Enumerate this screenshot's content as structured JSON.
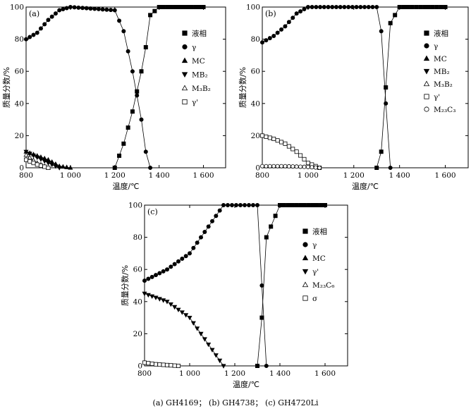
{
  "caption": "(a) GH4169； (b) GH4738； (c) GH4720Li",
  "chart_data": [
    {
      "type": "scatter",
      "panel_label": "(a)",
      "xlabel": "温度/℃",
      "ylabel": "质量分数/%",
      "xlim": [
        800,
        1700
      ],
      "ylim": [
        0,
        100
      ],
      "xticks": [
        800,
        1000,
        1200,
        1400,
        1600
      ],
      "xtick_labels": [
        "800",
        "1 000",
        "1 200",
        "1 400",
        "1 600"
      ],
      "yticks": [
        0,
        20,
        40,
        60,
        80,
        100
      ],
      "ytick_labels": [
        "0",
        "20",
        "40",
        "60",
        "80",
        "100"
      ],
      "legend_position": "right",
      "series": [
        {
          "name": "液相",
          "marker": "square-filled",
          "x": [
            1200,
            1240,
            1280,
            1320,
            1340,
            1360,
            1400,
            1600
          ],
          "y": [
            0,
            15,
            35,
            60,
            75,
            95,
            100,
            100
          ]
        },
        {
          "name": "γ",
          "marker": "circle-filled",
          "x": [
            800,
            850,
            900,
            950,
            1000,
            1200,
            1240,
            1280,
            1320,
            1340,
            1360
          ],
          "y": [
            80,
            84,
            92,
            98,
            100,
            98,
            85,
            60,
            30,
            10,
            0
          ]
        },
        {
          "name": "MC",
          "marker": "triangle-up-filled",
          "x": [
            800,
            900,
            950,
            1000
          ],
          "y": [
            10,
            5,
            1,
            0
          ]
        },
        {
          "name": "MB₂",
          "marker": "triangle-down-filled",
          "x": [
            800,
            900,
            950
          ],
          "y": [
            10,
            3,
            0
          ]
        },
        {
          "name": "M₃B₂",
          "marker": "triangle-up-open",
          "x": [
            800,
            850,
            900
          ],
          "y": [
            8,
            3,
            0
          ]
        },
        {
          "name": "γ'",
          "marker": "square-open",
          "x": [
            800,
            850,
            900
          ],
          "y": [
            5,
            2,
            0
          ]
        }
      ]
    },
    {
      "type": "scatter",
      "panel_label": "(b)",
      "xlabel": "温度/℃",
      "ylabel": "质量分数/%",
      "xlim": [
        800,
        1700
      ],
      "ylim": [
        0,
        100
      ],
      "xticks": [
        800,
        1000,
        1200,
        1400,
        1600
      ],
      "xtick_labels": [
        "800",
        "1 000",
        "1 200",
        "1 400",
        "1 600"
      ],
      "yticks": [
        0,
        20,
        40,
        60,
        80,
        100
      ],
      "ytick_labels": [
        "0",
        "20",
        "40",
        "60",
        "80",
        "100"
      ],
      "legend_position": "right",
      "series": [
        {
          "name": "液相",
          "marker": "square-filled",
          "x": [
            1300,
            1320,
            1340,
            1360,
            1400,
            1600
          ],
          "y": [
            0,
            10,
            50,
            90,
            100,
            100
          ]
        },
        {
          "name": "γ",
          "marker": "circle-filled",
          "x": [
            800,
            850,
            900,
            950,
            1000,
            1300,
            1320,
            1340,
            1360
          ],
          "y": [
            78,
            82,
            88,
            96,
            100,
            100,
            85,
            40,
            0
          ]
        },
        {
          "name": "MC",
          "marker": "triangle-up-filled",
          "x": [],
          "y": []
        },
        {
          "name": "MB₂",
          "marker": "triangle-down-filled",
          "x": [],
          "y": []
        },
        {
          "name": "M₃B₂",
          "marker": "triangle-up-open",
          "x": [],
          "y": []
        },
        {
          "name": "γ'",
          "marker": "square-open",
          "x": [
            800,
            850,
            900,
            950,
            1000,
            1050
          ],
          "y": [
            20,
            18,
            15,
            10,
            3,
            0
          ]
        },
        {
          "name": "M₂₃C₃",
          "marker": "circle-open",
          "x": [
            800,
            900,
            1000,
            1050
          ],
          "y": [
            1,
            1,
            0.5,
            0
          ]
        }
      ]
    },
    {
      "type": "scatter",
      "panel_label": "(c)",
      "xlabel": "温度/℃",
      "ylabel": "质量分数/%",
      "xlim": [
        800,
        1700
      ],
      "ylim": [
        0,
        100
      ],
      "xticks": [
        800,
        1000,
        1200,
        1400,
        1600
      ],
      "xtick_labels": [
        "800",
        "1 000",
        "1 200",
        "1 400",
        "1 600"
      ],
      "yticks": [
        0,
        20,
        40,
        60,
        80,
        100
      ],
      "ytick_labels": [
        "0",
        "20",
        "40",
        "60",
        "80",
        "100"
      ],
      "legend_position": "right",
      "series": [
        {
          "name": "液相",
          "marker": "square-filled",
          "x": [
            1300,
            1320,
            1340,
            1400,
            1600
          ],
          "y": [
            0,
            30,
            80,
            100,
            100
          ]
        },
        {
          "name": "γ",
          "marker": "circle-filled",
          "x": [
            800,
            900,
            1000,
            1100,
            1150,
            1300,
            1320,
            1340
          ],
          "y": [
            53,
            60,
            70,
            90,
            100,
            100,
            50,
            0
          ]
        },
        {
          "name": "MC",
          "marker": "triangle-up-filled",
          "x": [],
          "y": []
        },
        {
          "name": "γ'",
          "marker": "triangle-down-filled",
          "x": [
            800,
            900,
            1000,
            1100,
            1150
          ],
          "y": [
            45,
            40,
            30,
            10,
            0
          ]
        },
        {
          "name": "M₂₃C₆",
          "marker": "triangle-up-open",
          "x": [],
          "y": []
        },
        {
          "name": "σ",
          "marker": "square-open",
          "x": [
            800,
            850,
            900,
            950
          ],
          "y": [
            2,
            1,
            0.5,
            0
          ]
        }
      ]
    }
  ]
}
